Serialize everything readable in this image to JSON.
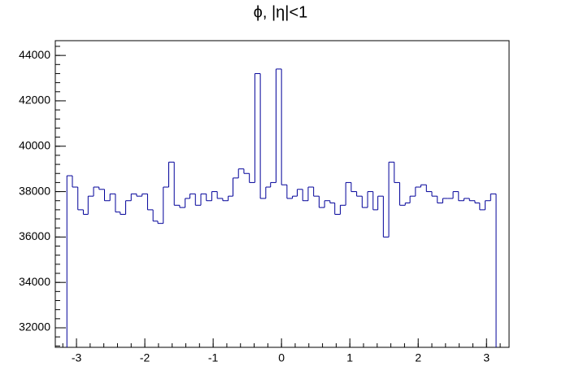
{
  "chart_data": {
    "type": "histogram",
    "title": "ϕ, |η|<1",
    "bins": [
      -3.14,
      -3.06,
      -2.98,
      -2.9,
      -2.83,
      -2.75,
      -2.67,
      -2.59,
      -2.51,
      -2.43,
      -2.36,
      -2.28,
      -2.2,
      -2.12,
      -2.04,
      -1.96,
      -1.88,
      -1.81,
      -1.73,
      -1.65,
      -1.57,
      -1.49,
      -1.41,
      -1.34,
      -1.26,
      -1.18,
      -1.1,
      -1.02,
      -0.94,
      -0.86,
      -0.78,
      -0.71,
      -0.63,
      -0.55,
      -0.47,
      -0.39,
      -0.31,
      -0.23,
      -0.16,
      -0.08,
      0,
      0.08,
      0.16,
      0.23,
      0.31,
      0.39,
      0.47,
      0.55,
      0.63,
      0.71,
      0.78,
      0.86,
      0.94,
      1.02,
      1.1,
      1.18,
      1.26,
      1.34,
      1.41,
      1.49,
      1.57,
      1.65,
      1.73,
      1.81,
      1.88,
      1.96,
      2.04,
      2.12,
      2.2,
      2.28,
      2.36,
      2.43,
      2.51,
      2.59,
      2.67,
      2.75,
      2.83,
      2.9,
      2.98,
      3.06,
      3.14
    ],
    "values": [
      38700,
      38200,
      37200,
      37000,
      37800,
      38200,
      38100,
      37600,
      37900,
      37100,
      37000,
      37600,
      37900,
      37800,
      37900,
      37200,
      36700,
      36600,
      38200,
      39300,
      37400,
      37300,
      37700,
      37900,
      37400,
      37900,
      37600,
      38000,
      37700,
      37600,
      37800,
      38600,
      39000,
      38800,
      38400,
      43200,
      37700,
      38200,
      38400,
      43400,
      38300,
      37700,
      37800,
      38100,
      37600,
      38200,
      37800,
      37300,
      37600,
      37500,
      37000,
      37400,
      38400,
      38000,
      37800,
      37300,
      38000,
      37200,
      37800,
      36000,
      39300,
      38400,
      37400,
      37500,
      37800,
      38200,
      38300,
      38000,
      37800,
      37500,
      37700,
      37700,
      38000,
      37600,
      37700,
      37600,
      37500,
      37200,
      37600,
      37900
    ],
    "color": "#000099",
    "xlim": [
      -3.31,
      3.33
    ],
    "xticks": [
      -3,
      -2,
      -1,
      0,
      1,
      2,
      3
    ],
    "ylim": [
      31140,
      44650
    ],
    "yticks": [
      32000,
      34000,
      36000,
      38000,
      40000,
      42000,
      44000
    ]
  }
}
